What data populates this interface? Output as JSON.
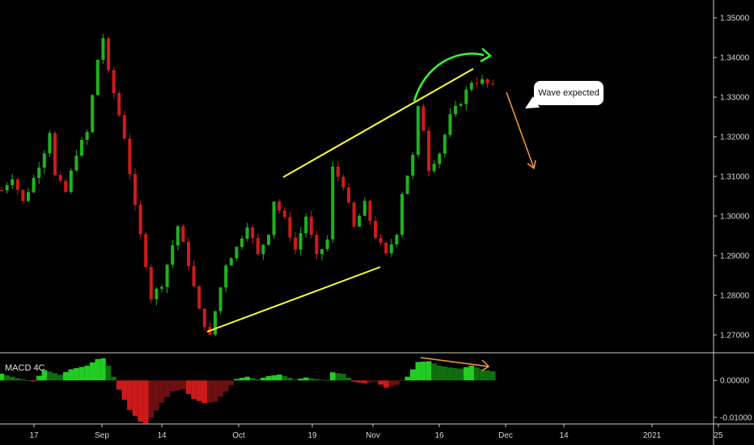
{
  "indicator": {
    "name": "MACD 4C"
  },
  "annotation": {
    "text": "Wave expected"
  },
  "colors": {
    "up": "#1db31d",
    "down": "#d11a1a",
    "trendline": "#ffff33",
    "arrow_green": "#33ff33",
    "arrow_orange": "#ff9933",
    "background": "#000000",
    "grid_border": "#cccccc"
  },
  "chart_data": {
    "type": "candlestick",
    "title": "",
    "price_axis": {
      "ticks": [
        "1.35000",
        "1.34000",
        "1.33000",
        "1.32000",
        "1.31000",
        "1.30000",
        "1.29000",
        "1.28000",
        "1.27000"
      ],
      "ylim": [
        1.2655,
        1.3545
      ]
    },
    "macd_axis": {
      "ticks": [
        "0.00000",
        "-0.01000"
      ],
      "ylim": [
        -0.0118,
        0.0075
      ]
    },
    "x_axis": {
      "ticks": [
        "17",
        "Sep",
        "14",
        "Oct",
        "19",
        "Nov",
        "16",
        "Dec",
        "14",
        "2021",
        "25"
      ]
    },
    "price_path": [
      [
        0,
        1.3065
      ],
      [
        2,
        1.31
      ],
      [
        4,
        1.3035
      ],
      [
        6,
        1.3095
      ],
      [
        8,
        1.3165
      ],
      [
        9,
        1.3215
      ],
      [
        10,
        1.31
      ],
      [
        12,
        1.306
      ],
      [
        14,
        1.316
      ],
      [
        16,
        1.321
      ],
      [
        18,
        1.3395
      ],
      [
        19,
        1.345
      ],
      [
        20,
        1.336
      ],
      [
        21,
        1.331
      ],
      [
        23,
        1.32
      ],
      [
        25,
        1.302
      ],
      [
        27,
        1.288
      ],
      [
        28,
        1.2795
      ],
      [
        30,
        1.283
      ],
      [
        33,
        1.2975
      ],
      [
        35,
        1.288
      ],
      [
        37,
        1.276
      ],
      [
        39,
        1.2695
      ],
      [
        40,
        1.276
      ],
      [
        42,
        1.288
      ],
      [
        44,
        1.292
      ],
      [
        46,
        1.298
      ],
      [
        48,
        1.29
      ],
      [
        50,
        1.296
      ],
      [
        51,
        1.304
      ],
      [
        53,
        1.299
      ],
      [
        55,
        1.2915
      ],
      [
        57,
        1.3
      ],
      [
        59,
        1.2895
      ],
      [
        61,
        1.294
      ],
      [
        62,
        1.312
      ],
      [
        64,
        1.308
      ],
      [
        66,
        1.297
      ],
      [
        68,
        1.303
      ],
      [
        70,
        1.295
      ],
      [
        72,
        1.29
      ],
      [
        74,
        1.296
      ],
      [
        75,
        1.306
      ],
      [
        77,
        1.315
      ],
      [
        78,
        1.327
      ],
      [
        79,
        1.322
      ],
      [
        80,
        1.312
      ],
      [
        82,
        1.316
      ],
      [
        84,
        1.325
      ],
      [
        86,
        1.329
      ],
      [
        88,
        1.334
      ],
      [
        90,
        1.334
      ],
      [
        92,
        1.3325
      ]
    ],
    "macd_path": [
      [
        0,
        0.0018
      ],
      [
        3,
        0.0006
      ],
      [
        6,
        -0.0003
      ],
      [
        8,
        0.0028
      ],
      [
        11,
        0.0015
      ],
      [
        13,
        0.003
      ],
      [
        16,
        0.004
      ],
      [
        18,
        0.0058
      ],
      [
        19,
        0.006
      ],
      [
        20,
        0.004
      ],
      [
        21,
        0.001
      ],
      [
        22,
        -0.0025
      ],
      [
        24,
        -0.008
      ],
      [
        26,
        -0.0112
      ],
      [
        27,
        -0.0116
      ],
      [
        28,
        -0.0102
      ],
      [
        30,
        -0.006
      ],
      [
        32,
        -0.003
      ],
      [
        34,
        -0.0024
      ],
      [
        36,
        -0.005
      ],
      [
        38,
        -0.0062
      ],
      [
        40,
        -0.0058
      ],
      [
        42,
        -0.003
      ],
      [
        44,
        0.0004
      ],
      [
        46,
        0.001
      ],
      [
        48,
        0.0003
      ],
      [
        50,
        0.0012
      ],
      [
        52,
        0.0016
      ],
      [
        53,
        0.0012
      ],
      [
        55,
        0.0002
      ],
      [
        57,
        0.0008
      ],
      [
        59,
        0.0004
      ],
      [
        61,
        0.0
      ],
      [
        62,
        0.0022
      ],
      [
        64,
        0.0018
      ],
      [
        66,
        -0.0004
      ],
      [
        68,
        -0.0008
      ],
      [
        70,
        -0.0003
      ],
      [
        72,
        -0.002
      ],
      [
        74,
        -0.0012
      ],
      [
        76,
        0.001
      ],
      [
        78,
        0.005
      ],
      [
        80,
        0.0052
      ],
      [
        82,
        0.004
      ],
      [
        84,
        0.0035
      ],
      [
        86,
        0.0032
      ],
      [
        88,
        0.004
      ],
      [
        90,
        0.003
      ],
      [
        92,
        0.0025
      ]
    ],
    "macd_bars_visible_start": 0,
    "macd_bars_visible_end": 92
  }
}
